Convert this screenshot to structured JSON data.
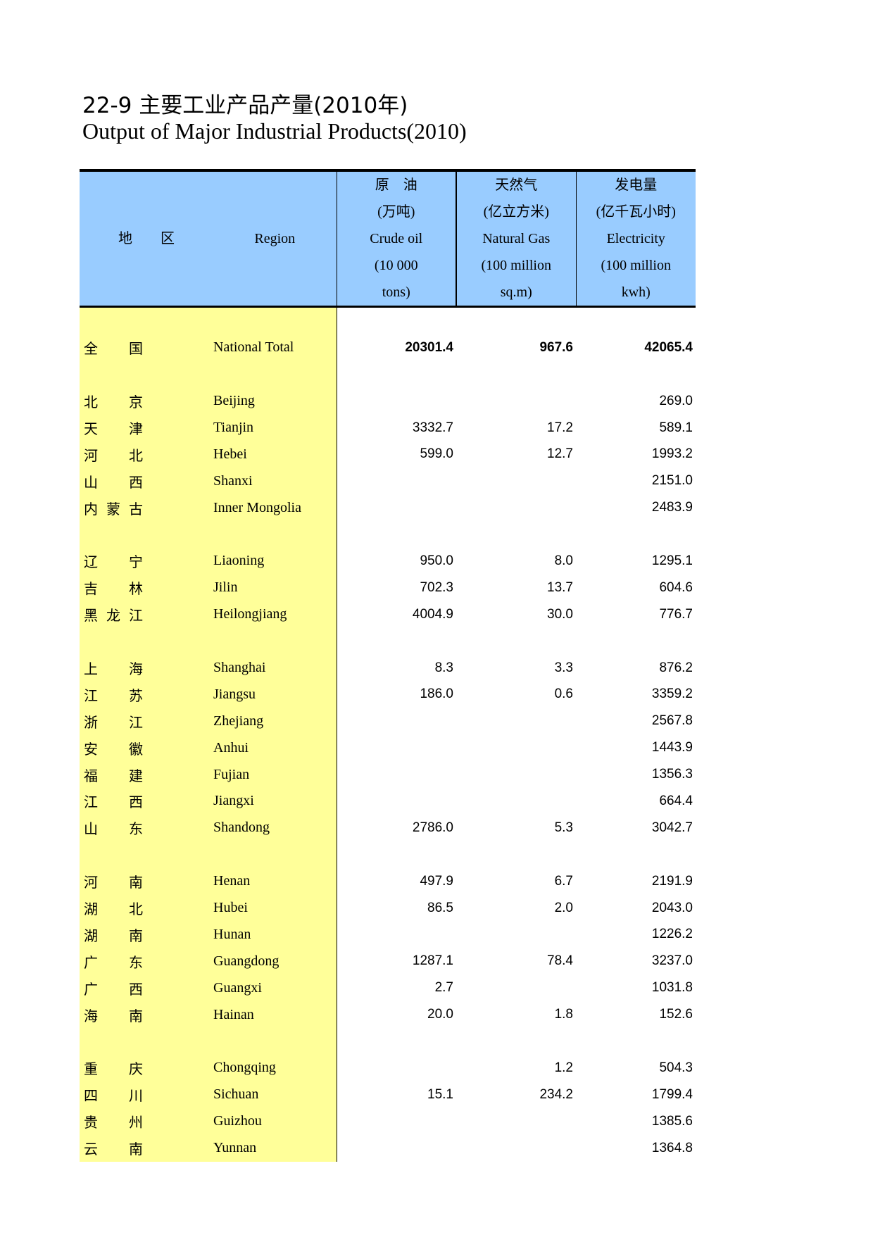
{
  "title_cn": "22-9  主要工业产品产量(2010年)",
  "title_en": "Output of Major Industrial Products(2010)",
  "header": {
    "region_cn": "地　　区",
    "region_en": "Region",
    "crude": [
      "原　油",
      "(万吨)",
      "Crude oil",
      "(10 000",
      "tons)"
    ],
    "gas": [
      "天然气",
      "(亿立方米)",
      "Natural Gas",
      "(100 million",
      "sq.m)"
    ],
    "elec": [
      "发电量",
      "(亿千瓦小时)",
      "Electricity",
      "(100 million",
      "kwh)"
    ]
  },
  "rows": [
    null,
    {
      "cn": [
        "全",
        "",
        "国"
      ],
      "en": "National Total",
      "crude": "20301.4",
      "gas": "967.6",
      "elec": "42065.4",
      "bold": true
    },
    null,
    {
      "cn": [
        "北",
        "",
        "京"
      ],
      "en": "Beijing",
      "crude": "",
      "gas": "",
      "elec": "269.0"
    },
    {
      "cn": [
        "天",
        "",
        "津"
      ],
      "en": "Tianjin",
      "crude": "3332.7",
      "gas": "17.2",
      "elec": "589.1"
    },
    {
      "cn": [
        "河",
        "",
        "北"
      ],
      "en": "Hebei",
      "crude": "599.0",
      "gas": "12.7",
      "elec": "1993.2"
    },
    {
      "cn": [
        "山",
        "",
        "西"
      ],
      "en": "Shanxi",
      "crude": "",
      "gas": "",
      "elec": "2151.0"
    },
    {
      "cn": [
        "内",
        "蒙",
        "古"
      ],
      "en": "Inner Mongolia",
      "crude": "",
      "gas": "",
      "elec": "2483.9"
    },
    null,
    {
      "cn": [
        "辽",
        "",
        "宁"
      ],
      "en": "Liaoning",
      "crude": "950.0",
      "gas": "8.0",
      "elec": "1295.1"
    },
    {
      "cn": [
        "吉",
        "",
        "林"
      ],
      "en": "Jilin",
      "crude": "702.3",
      "gas": "13.7",
      "elec": "604.6"
    },
    {
      "cn": [
        "黑",
        "龙",
        "江"
      ],
      "en": "Heilongjiang",
      "crude": "4004.9",
      "gas": "30.0",
      "elec": "776.7"
    },
    null,
    {
      "cn": [
        "上",
        "",
        "海"
      ],
      "en": "Shanghai",
      "crude": "8.3",
      "gas": "3.3",
      "elec": "876.2"
    },
    {
      "cn": [
        "江",
        "",
        "苏"
      ],
      "en": "Jiangsu",
      "crude": "186.0",
      "gas": "0.6",
      "elec": "3359.2"
    },
    {
      "cn": [
        "浙",
        "",
        "江"
      ],
      "en": "Zhejiang",
      "crude": "",
      "gas": "",
      "elec": "2567.8"
    },
    {
      "cn": [
        "安",
        "",
        "徽"
      ],
      "en": "Anhui",
      "crude": "",
      "gas": "",
      "elec": "1443.9"
    },
    {
      "cn": [
        "福",
        "",
        "建"
      ],
      "en": "Fujian",
      "crude": "",
      "gas": "",
      "elec": "1356.3"
    },
    {
      "cn": [
        "江",
        "",
        "西"
      ],
      "en": "Jiangxi",
      "crude": "",
      "gas": "",
      "elec": "664.4"
    },
    {
      "cn": [
        "山",
        "",
        "东"
      ],
      "en": "Shandong",
      "crude": "2786.0",
      "gas": "5.3",
      "elec": "3042.7"
    },
    null,
    {
      "cn": [
        "河",
        "",
        "南"
      ],
      "en": "Henan",
      "crude": "497.9",
      "gas": "6.7",
      "elec": "2191.9"
    },
    {
      "cn": [
        "湖",
        "",
        "北"
      ],
      "en": "Hubei",
      "crude": "86.5",
      "gas": "2.0",
      "elec": "2043.0"
    },
    {
      "cn": [
        "湖",
        "",
        "南"
      ],
      "en": "Hunan",
      "crude": "",
      "gas": "",
      "elec": "1226.2"
    },
    {
      "cn": [
        "广",
        "",
        "东"
      ],
      "en": "Guangdong",
      "crude": "1287.1",
      "gas": "78.4",
      "elec": "3237.0"
    },
    {
      "cn": [
        "广",
        "",
        "西"
      ],
      "en": "Guangxi",
      "crude": "2.7",
      "gas": "",
      "elec": "1031.8"
    },
    {
      "cn": [
        "海",
        "",
        "南"
      ],
      "en": "Hainan",
      "crude": "20.0",
      "gas": "1.8",
      "elec": "152.6"
    },
    null,
    {
      "cn": [
        "重",
        "",
        "庆"
      ],
      "en": "Chongqing",
      "crude": "",
      "gas": "1.2",
      "elec": "504.3"
    },
    {
      "cn": [
        "四",
        "",
        "川"
      ],
      "en": "Sichuan",
      "crude": "15.1",
      "gas": "234.2",
      "elec": "1799.4"
    },
    {
      "cn": [
        "贵",
        "",
        "州"
      ],
      "en": "Guizhou",
      "crude": "",
      "gas": "",
      "elec": "1385.6"
    },
    {
      "cn": [
        "云",
        "",
        "南"
      ],
      "en": "Yunnan",
      "crude": "",
      "gas": "",
      "elec": "1364.8"
    }
  ]
}
